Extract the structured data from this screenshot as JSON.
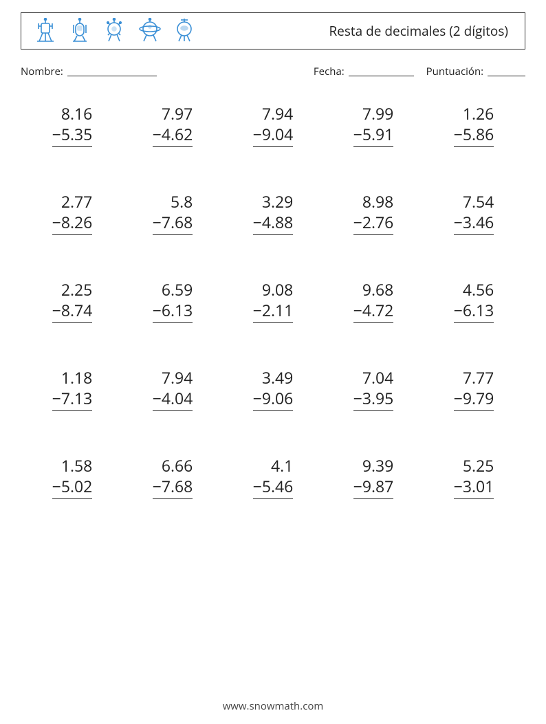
{
  "page": {
    "background": "#ffffff",
    "text_color": "#222222",
    "accent_color": "#3a8fd6",
    "font_family": "Segoe UI, Open Sans, Arial, sans-serif"
  },
  "header": {
    "title": "Resta de decimales (2 dígitos)",
    "icons": [
      {
        "name": "robot-lander-a"
      },
      {
        "name": "robot-capsule"
      },
      {
        "name": "robot-orb"
      },
      {
        "name": "robot-saturn"
      },
      {
        "name": "robot-eye"
      }
    ]
  },
  "labels": {
    "name": "Nombre:",
    "date": "Fecha:",
    "score": "Puntuación:"
  },
  "worksheet": {
    "operation": "subtraction",
    "operator_symbol": "−",
    "columns": 5,
    "rows": 5,
    "number_fontsize": 23,
    "line_height": 30,
    "underline_color": "#222222",
    "row_gap": 64,
    "problems": [
      {
        "a": "8.16",
        "b": "5.35"
      },
      {
        "a": "7.97",
        "b": "4.62"
      },
      {
        "a": "7.94",
        "b": "9.04"
      },
      {
        "a": "7.99",
        "b": "5.91"
      },
      {
        "a": "1.26",
        "b": "5.86"
      },
      {
        "a": "2.77",
        "b": "8.26"
      },
      {
        "a": "5.8",
        "b": "7.68"
      },
      {
        "a": "3.29",
        "b": "4.88"
      },
      {
        "a": "8.98",
        "b": "2.76"
      },
      {
        "a": "7.54",
        "b": "3.46"
      },
      {
        "a": "2.25",
        "b": "8.74"
      },
      {
        "a": "6.59",
        "b": "6.13"
      },
      {
        "a": "9.08",
        "b": "2.11"
      },
      {
        "a": "9.68",
        "b": "4.72"
      },
      {
        "a": "4.56",
        "b": "6.13"
      },
      {
        "a": "1.18",
        "b": "7.13"
      },
      {
        "a": "7.94",
        "b": "4.04"
      },
      {
        "a": "3.49",
        "b": "9.06"
      },
      {
        "a": "7.04",
        "b": "3.95"
      },
      {
        "a": "7.77",
        "b": "9.79"
      },
      {
        "a": "1.58",
        "b": "5.02"
      },
      {
        "a": "6.66",
        "b": "7.68"
      },
      {
        "a": "4.1",
        "b": "5.46"
      },
      {
        "a": "9.39",
        "b": "9.87"
      },
      {
        "a": "5.25",
        "b": "3.01"
      }
    ]
  },
  "footer": {
    "text": "www.snowmath.com"
  }
}
